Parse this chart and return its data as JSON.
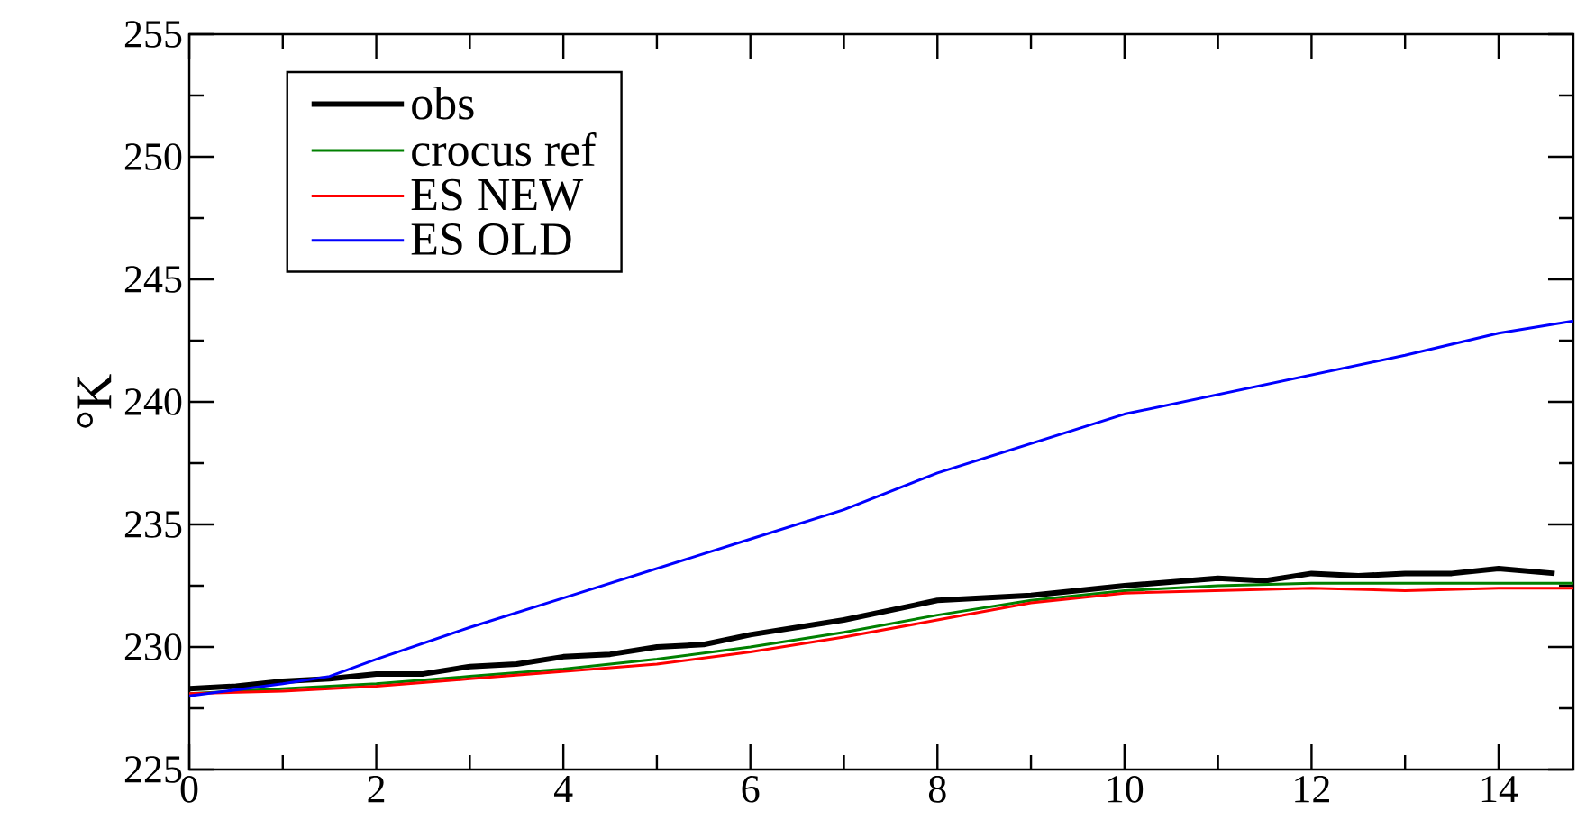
{
  "chart_data": {
    "type": "line",
    "ylabel": "°K",
    "xlim": [
      0,
      14.8
    ],
    "ylim": [
      225,
      255
    ],
    "xticks": [
      0,
      2,
      4,
      6,
      8,
      10,
      12,
      14
    ],
    "yticks": [
      225,
      230,
      235,
      240,
      245,
      250,
      255
    ],
    "grid": false,
    "legend": "top left",
    "marker": "none",
    "line_style": "solid",
    "series": [
      {
        "name": "obs",
        "color": "#000000",
        "x": [
          0,
          0.5,
          1,
          1.5,
          2,
          2.5,
          3,
          3.5,
          4,
          4.5,
          5,
          5.5,
          6,
          7,
          8,
          9,
          10,
          11,
          11.5,
          12,
          12.5,
          13,
          13.5,
          14,
          14.6
        ],
        "values": [
          228.3,
          228.4,
          228.6,
          228.7,
          228.9,
          228.9,
          229.2,
          229.3,
          229.6,
          229.7,
          230.0,
          230.1,
          230.5,
          231.1,
          231.9,
          232.1,
          232.5,
          232.8,
          232.7,
          233.0,
          232.9,
          233.0,
          233.0,
          233.2,
          233.0
        ]
      },
      {
        "name": "crocus ref",
        "color": "#008000",
        "x": [
          0,
          1,
          2,
          3,
          4,
          5,
          6,
          7,
          8,
          9,
          10,
          11,
          12,
          13,
          14,
          14.8
        ],
        "values": [
          228.1,
          228.3,
          228.5,
          228.8,
          229.1,
          229.5,
          230.0,
          230.6,
          231.3,
          231.9,
          232.3,
          232.5,
          232.6,
          232.6,
          232.6,
          232.6
        ]
      },
      {
        "name": "ES NEW",
        "color": "#ff0000",
        "x": [
          0,
          1,
          2,
          3,
          4,
          5,
          6,
          7,
          8,
          9,
          10,
          11,
          12,
          13,
          14,
          14.8
        ],
        "values": [
          228.1,
          228.2,
          228.4,
          228.7,
          229.0,
          229.3,
          229.8,
          230.4,
          231.1,
          231.8,
          232.2,
          232.3,
          232.4,
          232.3,
          232.4,
          232.4
        ]
      },
      {
        "name": "ES OLD",
        "color": "#0000ff",
        "x": [
          0,
          1,
          1.5,
          2,
          3,
          4,
          5,
          6,
          7,
          8,
          9,
          10,
          11,
          12,
          13,
          14,
          14.8
        ],
        "values": [
          228.0,
          228.5,
          228.8,
          229.5,
          230.8,
          232.0,
          233.2,
          234.4,
          235.6,
          237.1,
          238.3,
          239.5,
          240.3,
          241.1,
          241.9,
          242.8,
          243.3
        ]
      }
    ]
  }
}
